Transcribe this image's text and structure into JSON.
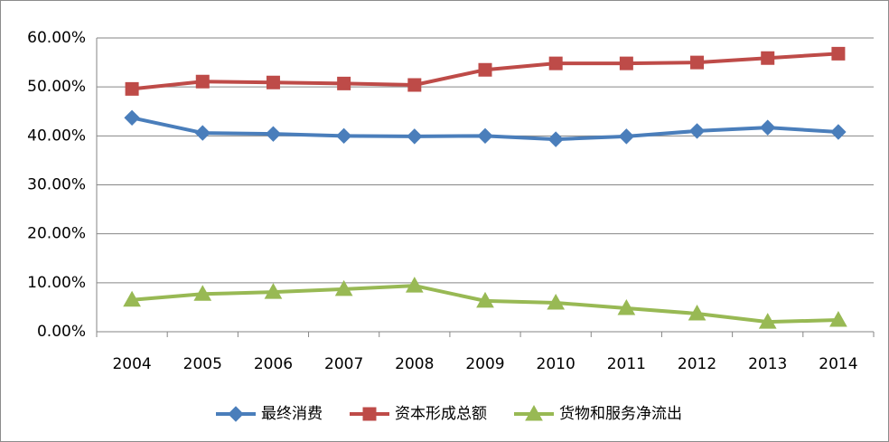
{
  "chart_data": {
    "type": "line",
    "categories": [
      "2004",
      "2005",
      "2006",
      "2007",
      "2008",
      "2009",
      "2010",
      "2011",
      "2012",
      "2013",
      "2014"
    ],
    "series": [
      {
        "name": "最终消费",
        "color": "#4a7ebb",
        "marker": "diamond",
        "values": [
          43.7,
          40.6,
          40.4,
          40.0,
          39.9,
          40.0,
          39.3,
          39.9,
          41.0,
          41.7,
          40.8
        ]
      },
      {
        "name": "资本形成总额",
        "color": "#be4b48",
        "marker": "square",
        "values": [
          49.6,
          51.1,
          50.9,
          50.7,
          50.4,
          53.5,
          54.8,
          54.8,
          55.0,
          55.9,
          56.8
        ]
      },
      {
        "name": "货物和服务净流出",
        "color": "#98b954",
        "marker": "triangle",
        "values": [
          6.5,
          7.7,
          8.1,
          8.7,
          9.4,
          6.3,
          5.9,
          4.8,
          3.7,
          2.0,
          2.4
        ]
      }
    ],
    "ylim": [
      0,
      60
    ],
    "yticks": [
      {
        "value": 0,
        "label": "0.00%"
      },
      {
        "value": 10,
        "label": "10.00%"
      },
      {
        "value": 20,
        "label": "20.00%"
      },
      {
        "value": 30,
        "label": "30.00%"
      },
      {
        "value": 40,
        "label": "40.00%"
      },
      {
        "value": 50,
        "label": "50.00%"
      },
      {
        "value": 60,
        "label": "60.00%"
      }
    ],
    "grid": true,
    "legend": "bottom"
  }
}
